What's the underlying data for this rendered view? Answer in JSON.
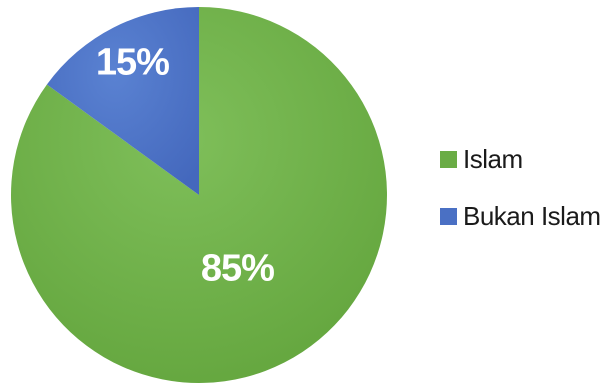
{
  "chart_data": {
    "type": "pie",
    "categories": [
      "Islam",
      "Bukan Islam"
    ],
    "values": [
      85,
      15
    ],
    "unit": "%",
    "labels": [
      "85%",
      "15%"
    ],
    "colors": [
      "#6aac45",
      "#4a70c4"
    ],
    "legend_position": "right",
    "start_angle": "top-clockwise-second-slice"
  }
}
